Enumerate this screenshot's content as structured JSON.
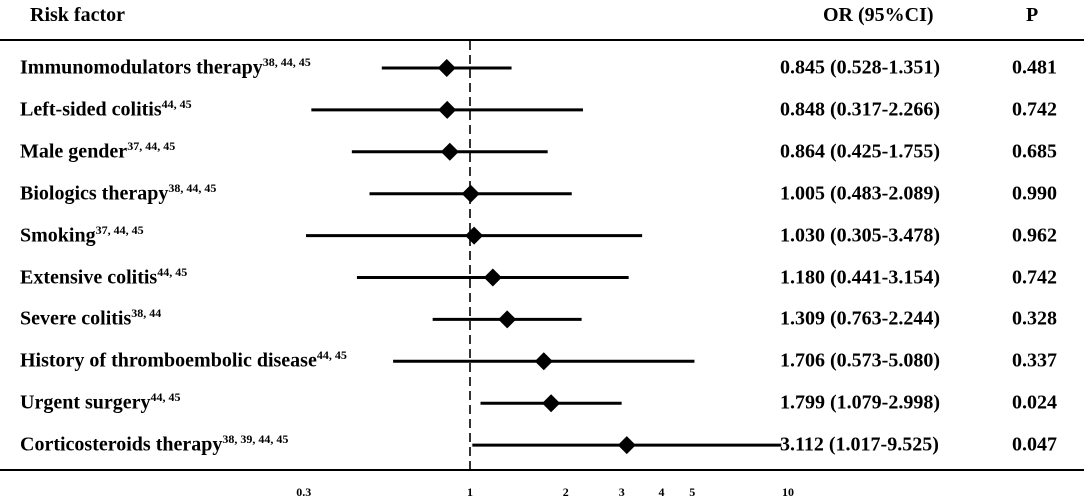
{
  "header": {
    "risk_factor": "Risk factor",
    "or": "OR (95%CI)",
    "p": "P"
  },
  "rows": [
    {
      "name": "Immunomodulators therapy",
      "refs": "38, 44, 45",
      "or": "0.845 (0.528-1.351)",
      "p": "0.481"
    },
    {
      "name": "Left-sided colitis",
      "refs": "44, 45",
      "or": "0.848 (0.317-2.266)",
      "p": "0.742"
    },
    {
      "name": "Male gender",
      "refs": "37, 44, 45",
      "or": "0.864 (0.425-1.755)",
      "p": "0.685"
    },
    {
      "name": "Biologics therapy",
      "refs": "38, 44, 45",
      "or": "1.005 (0.483-2.089)",
      "p": "0.990"
    },
    {
      "name": "Smoking",
      "refs": "37, 44, 45",
      "or": "1.030 (0.305-3.478)",
      "p": "0.962"
    },
    {
      "name": "Extensive colitis",
      "refs": "44, 45",
      "or": "1.180 (0.441-3.154)",
      "p": "0.742"
    },
    {
      "name": "Severe colitis",
      "refs": "38, 44",
      "or": "1.309 (0.763-2.244)",
      "p": "0.328"
    },
    {
      "name": "History of thromboembolic disease",
      "refs": "44, 45",
      "or": "1.706 (0.573-5.080)",
      "p": "0.337"
    },
    {
      "name": "Urgent surgery",
      "refs": "44, 45",
      "or": "1.799 (1.079-2.998)",
      "p": "0.024"
    },
    {
      "name": "Corticosteroids therapy",
      "refs": "38, 39, 44, 45",
      "or": "3.112 (1.017-9.525)",
      "p": "0.047"
    }
  ],
  "chart_data": {
    "type": "forest",
    "x_scale": "log",
    "x_ticks": [
      0.3,
      1,
      2,
      3,
      4,
      5,
      10
    ],
    "x_tick_labels": [
      "0.3",
      "1",
      "2",
      "3",
      "4",
      "5",
      "10"
    ],
    "reference_line": 1,
    "categories": [
      "Immunomodulators therapy",
      "Left-sided colitis",
      "Male gender",
      "Biologics therapy",
      "Smoking",
      "Extensive colitis",
      "Severe colitis",
      "History of thromboembolic disease",
      "Urgent surgery",
      "Corticosteroids therapy"
    ],
    "or": [
      0.845,
      0.848,
      0.864,
      1.005,
      1.03,
      1.18,
      1.309,
      1.706,
      1.799,
      3.112
    ],
    "lower": [
      0.528,
      0.317,
      0.425,
      0.483,
      0.305,
      0.441,
      0.763,
      0.573,
      1.079,
      1.017
    ],
    "upper": [
      1.351,
      2.266,
      1.755,
      2.089,
      3.478,
      3.154,
      2.244,
      5.08,
      2.998,
      9.525
    ]
  }
}
